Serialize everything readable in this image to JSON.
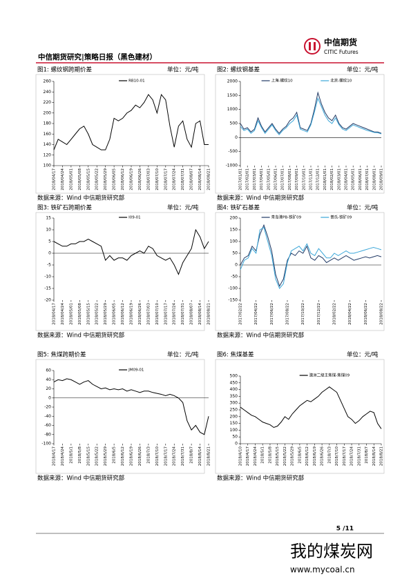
{
  "header": {
    "title": "中信期货研究|策略日报（黑色建材）",
    "logo_cn": "中信期货",
    "logo_en": "CITIC Futures"
  },
  "footer": {
    "page": "5 /11"
  },
  "watermark": {
    "name": "我的煤炭网",
    "url": "www.mycoal.cn"
  },
  "chart_data": [
    {
      "type": "line",
      "title": "图1: 螺纹钢跨期价差",
      "unit": "单位：元/吨",
      "source": "数据来源：Wind 中信期货研究部",
      "categories": [
        "2018/04/17",
        null,
        "2018/04/24",
        null,
        "2018/05/01",
        null,
        "2018/05/08",
        null,
        "2018/05/15",
        null,
        "2018/05/22",
        null,
        "2018/05/29",
        null,
        "2018/06/05",
        null,
        "2018/06/12",
        null,
        "2018/06/19",
        null,
        "2018/06/26",
        null,
        "2018/07/03",
        null,
        "2018/07/10",
        null,
        "2018/07/17",
        null,
        "2018/07/24",
        null,
        "2018/07/31",
        null,
        "2018/08/07",
        null,
        "2018/08/14",
        null,
        "2018/08/21"
      ],
      "series": [
        {
          "name": "RB10-01",
          "color": "#000000",
          "values": [
            130,
            150,
            145,
            140,
            150,
            160,
            170,
            175,
            160,
            140,
            135,
            130,
            130,
            150,
            190,
            185,
            190,
            200,
            205,
            215,
            210,
            220,
            235,
            225,
            200,
            235,
            225,
            175,
            135,
            175,
            185,
            150,
            135,
            180,
            185,
            140,
            140
          ]
        }
      ],
      "ylim": [
        100,
        260
      ],
      "yticks": [
        100,
        120,
        140,
        160,
        180,
        200,
        220,
        240,
        260
      ]
    },
    {
      "type": "line",
      "title": "图2: 螺纹钢基差",
      "unit": "单位：元/吨",
      "source": "数据来源：Wind 中信期货研究部",
      "categories": [
        "2017/01/01",
        null,
        "2017/02/01",
        null,
        "2017/03/01",
        null,
        "2017/04/01",
        null,
        "2017/05/01",
        null,
        "2017/06/01",
        null,
        "2017/07/01",
        null,
        "2017/08/01",
        null,
        "2017/09/01",
        null,
        "2017/10/01",
        null,
        "2017/11/01",
        null,
        "2017/12/01",
        null,
        "2018/01/01",
        null,
        "2018/02/01",
        null,
        "2018/03/01",
        null,
        "2018/04/01",
        null,
        "2018/05/01",
        null,
        "2018/06/01",
        null,
        "2018/07/01",
        null,
        "2018/08/01",
        null,
        "2018/09/01"
      ],
      "series": [
        {
          "name": "上海-螺纹10",
          "color": "#1f3864",
          "values": [
            500,
            300,
            350,
            200,
            300,
            700,
            400,
            200,
            350,
            500,
            300,
            150,
            300,
            400,
            600,
            700,
            900,
            350,
            300,
            250,
            500,
            1000,
            1600,
            1200,
            900,
            700,
            600,
            800,
            500,
            350,
            300,
            400,
            500,
            450,
            400,
            350,
            300,
            250,
            200,
            200,
            150
          ]
        },
        {
          "name": "北京-螺纹10",
          "color": "#3aa6d8",
          "values": [
            400,
            250,
            300,
            150,
            250,
            600,
            350,
            150,
            300,
            450,
            250,
            100,
            250,
            350,
            500,
            600,
            800,
            300,
            250,
            200,
            450,
            900,
            1400,
            1100,
            800,
            600,
            500,
            700,
            450,
            300,
            250,
            350,
            450,
            400,
            350,
            300,
            250,
            220,
            180,
            170,
            130
          ]
        }
      ],
      "ylim": [
        -1000,
        2000
      ],
      "yticks": [
        -1000,
        -500,
        0,
        500,
        1000,
        1500,
        2000
      ]
    },
    {
      "type": "line",
      "title": "图3: 铁矿石跨期价差",
      "unit": "单位：元/吨",
      "source": "数据来源：Wind 中信期货研究部",
      "categories": [
        "2018/04/17",
        null,
        "2018/04/24",
        null,
        "2018/05/01",
        null,
        "2018/05/08",
        null,
        "2018/05/15",
        null,
        "2018/05/22",
        null,
        "2018/05/29",
        null,
        "2018/06/05",
        null,
        "2018/06/12",
        null,
        "2018/06/19",
        null,
        "2018/06/26",
        null,
        "2018/07/03",
        null,
        "2018/07/10",
        null,
        "2018/07/17",
        null,
        "2018/07/24",
        null,
        "2018/07/31",
        null,
        "2018/08/07",
        null,
        "2018/08/14",
        null,
        "2018/08/21"
      ],
      "series": [
        {
          "name": "I09-01",
          "color": "#000000",
          "values": [
            5,
            4,
            3,
            3,
            4,
            4,
            5,
            5,
            6,
            5,
            4,
            3,
            -3,
            -1,
            -3,
            -2,
            -2,
            -3,
            -1,
            0,
            1,
            0,
            3,
            2,
            -1,
            -2,
            -3,
            -2,
            -5,
            -9,
            -4,
            -1,
            2,
            10,
            7,
            2,
            5
          ]
        }
      ],
      "ylim": [
        -20,
        15
      ],
      "yticks": [
        -20,
        -15,
        -10,
        -5,
        0,
        5,
        10,
        15
      ]
    },
    {
      "type": "line",
      "title": "图4: 铁矿石基差",
      "unit": "单位：元/吨",
      "source": "数据来源：Wind 中信期货研究部",
      "categories": [
        "2017/02/22",
        null,
        null,
        null,
        "2017/04/22",
        null,
        null,
        null,
        "2017/06/22",
        null,
        null,
        null,
        "2017/08/22",
        null,
        null,
        null,
        "2017/10/22",
        null,
        null,
        null,
        "2017/12/22",
        null,
        null,
        null,
        "2018/02/22",
        null,
        null,
        null,
        "2018/04/22",
        null,
        null,
        null,
        "2018/06/22",
        null,
        null,
        null,
        "2018/08/22"
      ],
      "series": [
        {
          "name": "青岛港PB-铁矿09",
          "color": "#1f3864",
          "values": [
            0,
            30,
            40,
            80,
            60,
            130,
            170,
            120,
            60,
            -40,
            -90,
            -60,
            20,
            50,
            40,
            60,
            50,
            80,
            30,
            20,
            40,
            30,
            10,
            20,
            30,
            20,
            30,
            40,
            30,
            20,
            25,
            30,
            35,
            30,
            35,
            40,
            35
          ]
        },
        {
          "name": "普氏-铁矿09",
          "color": "#3aa6d8",
          "values": [
            -20,
            20,
            30,
            70,
            50,
            150,
            160,
            100,
            40,
            -60,
            -100,
            -80,
            10,
            60,
            70,
            80,
            60,
            90,
            50,
            40,
            70,
            50,
            30,
            30,
            50,
            40,
            50,
            60,
            50,
            50,
            55,
            60,
            65,
            70,
            75,
            70,
            65
          ]
        }
      ],
      "ylim": [
        -150,
        200
      ],
      "yticks": [
        -150,
        -100,
        -50,
        0,
        50,
        100,
        150,
        200
      ]
    },
    {
      "type": "line",
      "title": "图5: 焦煤跨期价差",
      "unit": "单位：元/吨",
      "source": "数据来源：Wind 中信期货研究部",
      "categories": [
        "2018/4/17",
        null,
        "2018/4/24",
        null,
        "2018/5/1",
        null,
        "2018/5/8",
        null,
        "2018/5/15",
        null,
        "2018/5/22",
        null,
        "2018/5/29",
        null,
        "2018/6/5",
        null,
        "2018/6/12",
        null,
        "2018/6/19",
        null,
        "2018/6/26",
        null,
        "2018/7/3",
        null,
        "2018/7/10",
        null,
        "2018/7/17",
        null,
        "2018/7/24",
        null,
        "2018/7/31",
        null,
        "2018/8/7",
        null,
        "2018/8/14",
        null,
        "2018/8/21"
      ],
      "series": [
        {
          "name": "JM09-01",
          "color": "#000000",
          "values": [
            35,
            40,
            38,
            42,
            40,
            35,
            30,
            35,
            38,
            30,
            25,
            20,
            22,
            18,
            20,
            18,
            20,
            15,
            18,
            15,
            12,
            15,
            15,
            12,
            10,
            8,
            5,
            8,
            5,
            0,
            -10,
            -50,
            -70,
            -60,
            -75,
            -80,
            -40
          ]
        }
      ],
      "ylim": [
        -100,
        60
      ],
      "yticks": [
        -100,
        -80,
        -60,
        -40,
        -20,
        0,
        20,
        40,
        60
      ]
    },
    {
      "type": "line",
      "title": "图6: 焦煤基差",
      "unit": "单位：元/吨",
      "source": "数据来源：Wind 中信期货研究部",
      "categories": [
        "2018/4/10",
        null,
        "2018/4/17",
        null,
        "2018/4/24",
        null,
        "2018/5/1",
        null,
        "2018/5/8",
        null,
        "2018/5/15",
        null,
        "2018/5/22",
        null,
        "2018/5/29",
        null,
        "2018/6/5",
        null,
        "2018/6/12",
        null,
        "2018/6/19",
        null,
        "2018/6/26",
        null,
        "2018/7/3",
        null,
        "2018/7/10",
        null,
        "2018/7/17",
        null,
        "2018/7/24",
        null,
        "2018/7/31",
        null,
        "2018/8/7",
        null,
        "2018/8/14",
        null,
        "2018/8/21"
      ],
      "series": [
        {
          "name": "澳洲二级主焦煤-焦煤09",
          "color": "#000000",
          "values": [
            270,
            250,
            230,
            210,
            200,
            180,
            160,
            150,
            140,
            120,
            130,
            160,
            200,
            180,
            220,
            250,
            280,
            300,
            320,
            310,
            330,
            350,
            380,
            400,
            420,
            400,
            380,
            320,
            260,
            200,
            180,
            150,
            170,
            200,
            220,
            240,
            230,
            150,
            110
          ]
        }
      ],
      "ylim": [
        0,
        500
      ],
      "yticks": [
        0,
        50,
        100,
        150,
        200,
        250,
        300,
        350,
        400,
        450,
        500
      ]
    }
  ]
}
